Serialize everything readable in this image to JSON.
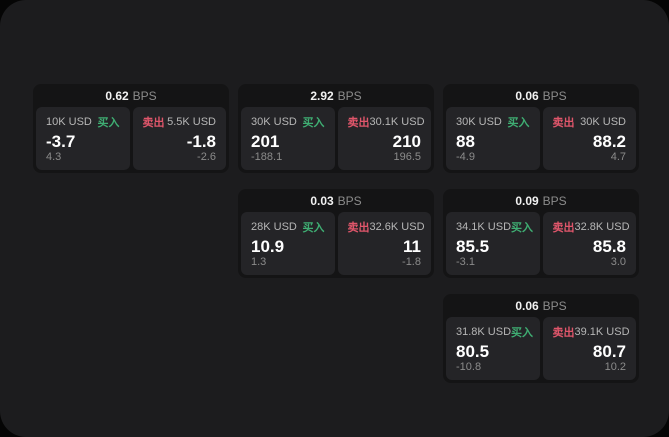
{
  "labels": {
    "bps_unit": "BPS",
    "buy": "买入",
    "sell": "卖出"
  },
  "colors": {
    "background": "#050505",
    "panel_bg": "#1c1c1e",
    "card_bg": "#141415",
    "box_bg": "#242427",
    "buy_green": "#3fae73",
    "sell_red": "#e0566b"
  },
  "cards": [
    {
      "bps": "0.62",
      "grid": {
        "row": 1,
        "col": 1
      },
      "buy": {
        "amount": "10K USD",
        "value": "-3.7",
        "sub": "4.3"
      },
      "sell": {
        "amount": "5.5K USD",
        "value": "-1.8",
        "sub": "-2.6"
      }
    },
    {
      "bps": "2.92",
      "grid": {
        "row": 1,
        "col": 2
      },
      "buy": {
        "amount": "30K USD",
        "value": "201",
        "sub": "-188.1"
      },
      "sell": {
        "amount": "30.1K USD",
        "value": "210",
        "sub": "196.5"
      }
    },
    {
      "bps": "0.06",
      "grid": {
        "row": 1,
        "col": 3
      },
      "buy": {
        "amount": "30K USD",
        "value": "88",
        "sub": "-4.9"
      },
      "sell": {
        "amount": "30K USD",
        "value": "88.2",
        "sub": "4.7"
      }
    },
    {
      "bps": "0.03",
      "grid": {
        "row": 2,
        "col": 2
      },
      "buy": {
        "amount": "28K USD",
        "value": "10.9",
        "sub": "1.3"
      },
      "sell": {
        "amount": "32.6K USD",
        "value": "11",
        "sub": "-1.8"
      }
    },
    {
      "bps": "0.09",
      "grid": {
        "row": 2,
        "col": 3
      },
      "buy": {
        "amount": "34.1K USD",
        "value": "85.5",
        "sub": "-3.1"
      },
      "sell": {
        "amount": "32.8K USD",
        "value": "85.8",
        "sub": "3.0"
      }
    },
    {
      "bps": "0.06",
      "grid": {
        "row": 3,
        "col": 3
      },
      "buy": {
        "amount": "31.8K USD",
        "value": "80.5",
        "sub": "-10.8"
      },
      "sell": {
        "amount": "39.1K USD",
        "value": "80.7",
        "sub": "10.2"
      }
    }
  ]
}
